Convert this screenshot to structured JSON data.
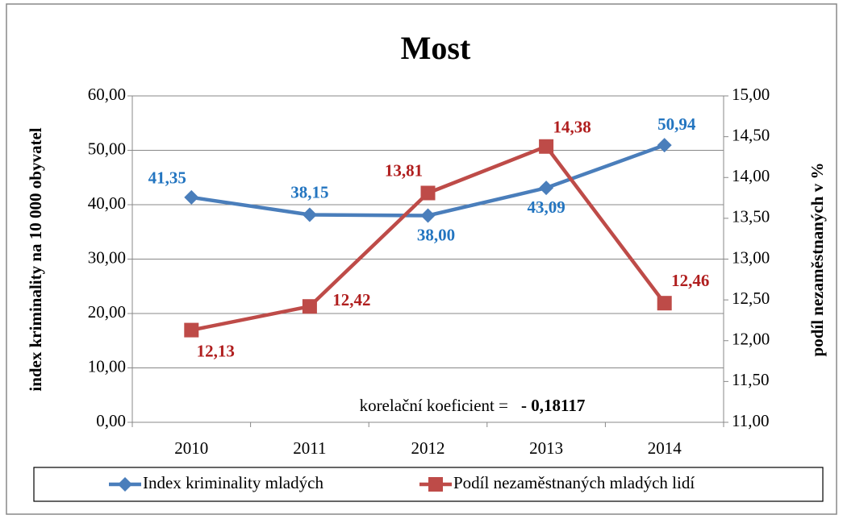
{
  "chart_data": {
    "type": "line",
    "title": "Most",
    "ylabel": "index kriminality na 10 000 obyvatel",
    "y2label": "podíl nezaměstnaných v %",
    "categories": [
      "2010",
      "2011",
      "2012",
      "2013",
      "2014"
    ],
    "series": [
      {
        "name": "Index kriminality mladých",
        "color": "#4a7ebb",
        "label_color": "#2375c0",
        "marker": "diamond",
        "values": [
          41.35,
          38.15,
          38.0,
          43.09,
          50.94
        ],
        "value_labels": [
          "41,35",
          "38,15",
          "38,00",
          "43,09",
          "50,94"
        ]
      },
      {
        "name": "Podíl nezaměstnaných mladých lidí",
        "color": "#be4b48",
        "label_color": "#b01e1e",
        "marker": "square",
        "axis": "y2",
        "values": [
          12.13,
          12.42,
          13.81,
          14.38,
          12.46
        ],
        "value_labels": [
          "12,13",
          "12,42",
          "13,81",
          "14,38",
          "12,46"
        ]
      }
    ],
    "ylim": [
      0,
      60
    ],
    "yticks": [
      {
        "value": 0,
        "label": "0,00"
      },
      {
        "value": 10,
        "label": "10,00"
      },
      {
        "value": 20,
        "label": "20,00"
      },
      {
        "value": 30,
        "label": "30,00"
      },
      {
        "value": 40,
        "label": "40,00"
      },
      {
        "value": 50,
        "label": "50,00"
      },
      {
        "value": 60,
        "label": "60,00"
      }
    ],
    "y2lim": [
      11,
      15
    ],
    "y2ticks": [
      {
        "value": 11,
        "label": "11,00"
      },
      {
        "value": 11.5,
        "label": "11,50"
      },
      {
        "value": 12,
        "label": "12,00"
      },
      {
        "value": 12.5,
        "label": "12,50"
      },
      {
        "value": 13,
        "label": "13,00"
      },
      {
        "value": 13.5,
        "label": "13,50"
      },
      {
        "value": 14,
        "label": "14,00"
      },
      {
        "value": 14.5,
        "label": "14,50"
      },
      {
        "value": 15,
        "label": "15,00"
      }
    ],
    "grid": true,
    "legend": "bottom",
    "annotation": {
      "text": "korelační koeficient =",
      "value": "- 0,18117"
    }
  }
}
